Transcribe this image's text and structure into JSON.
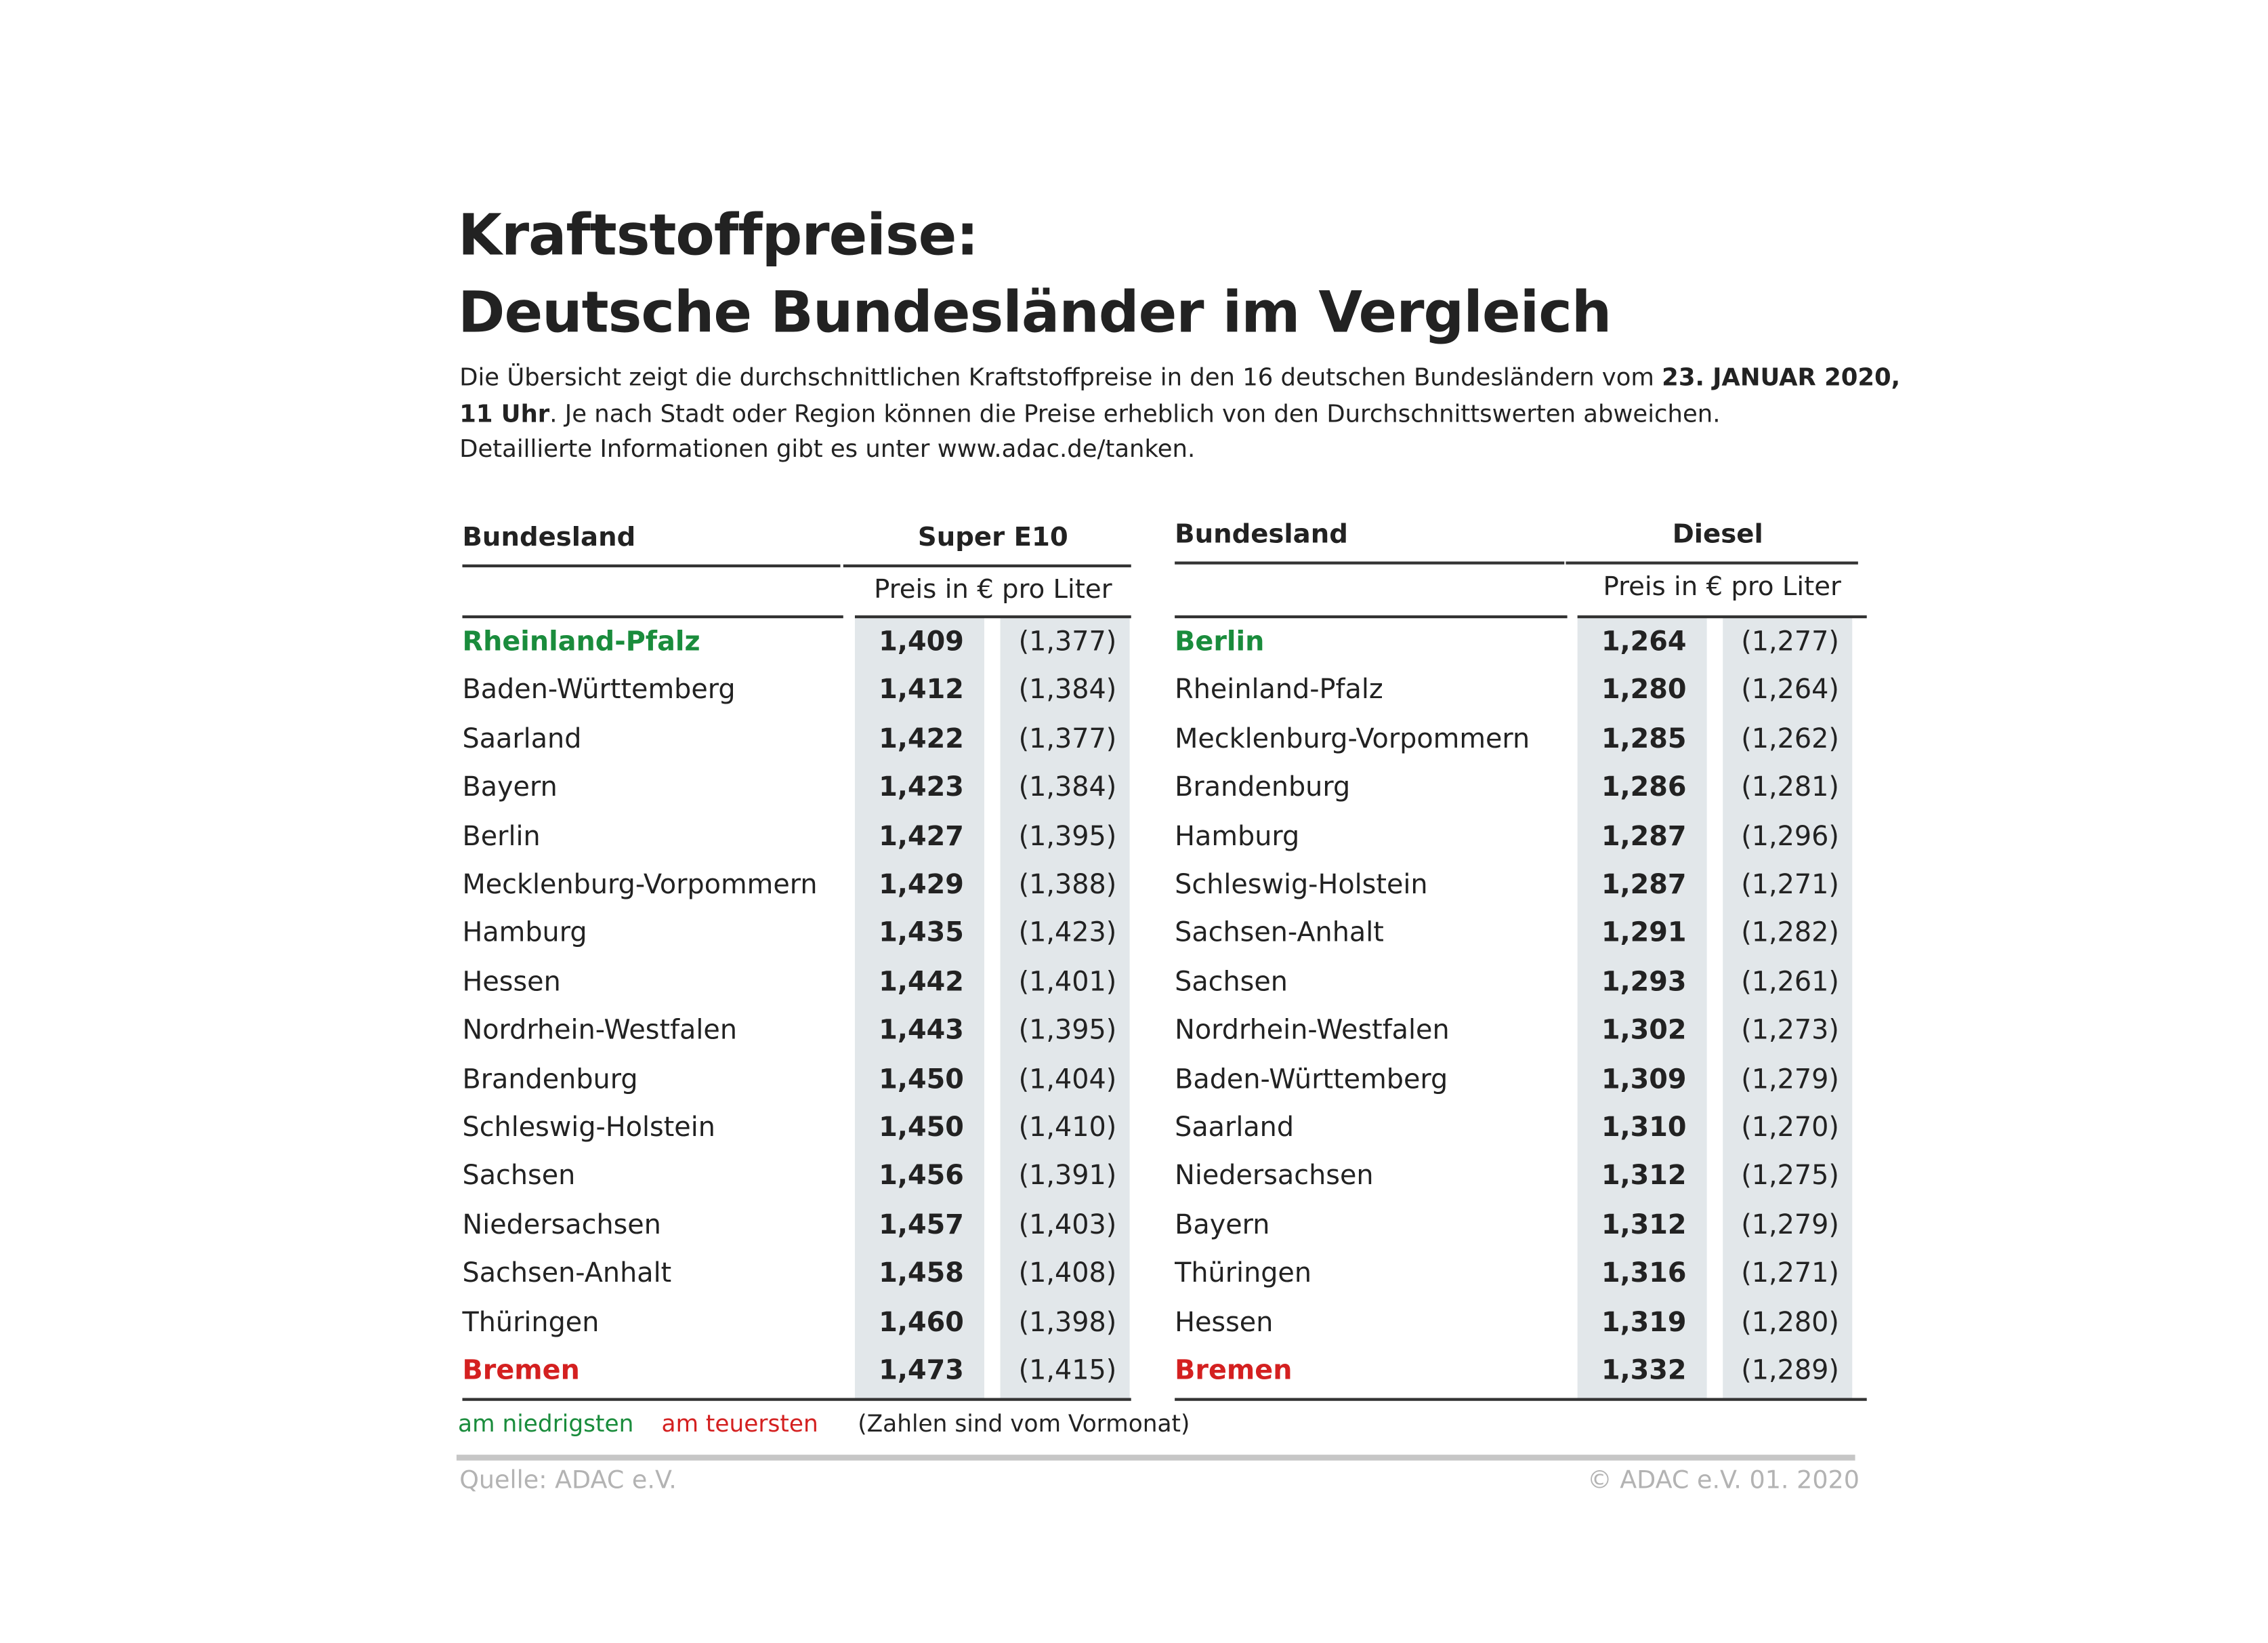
{
  "title_line1": "Kraftstoffpreise:",
  "title_line2": "Deutsche Bundesländer im Vergleich",
  "intro": {
    "part1": "Die Übersicht zeigt die durchschnittlichen Kraftstoffpreise in den 16 deutschen Bundesländern vom ",
    "date_bold": "23. JANUAR 2020,",
    "time_bold": "11 Uhr",
    "part2": ". Je nach Stadt oder Region können die Preise erheblich von den Durchschnittswerten abweichen.",
    "line3": "Detaillierte Informationen gibt es unter www.adac.de/tanken."
  },
  "colors": {
    "lowest": "#1a8c3c",
    "highest": "#d42020",
    "shade": "#e2e7ea"
  },
  "tables": [
    {
      "col_state": "Bundesland",
      "fuel": "Super E10",
      "unit": "Preis in € pro Liter",
      "rows": [
        {
          "state": "Rheinland-Pfalz",
          "price": "1,409",
          "prev": "(1,377)",
          "mark": "low"
        },
        {
          "state": "Baden-Württemberg",
          "price": "1,412",
          "prev": "(1,384)"
        },
        {
          "state": "Saarland",
          "price": "1,422",
          "prev": "(1,377)"
        },
        {
          "state": "Bayern",
          "price": "1,423",
          "prev": "(1,384)"
        },
        {
          "state": "Berlin",
          "price": "1,427",
          "prev": "(1,395)"
        },
        {
          "state": "Mecklenburg-Vorpommern",
          "price": "1,429",
          "prev": "(1,388)"
        },
        {
          "state": "Hamburg",
          "price": "1,435",
          "prev": "(1,423)"
        },
        {
          "state": "Hessen",
          "price": "1,442",
          "prev": "(1,401)"
        },
        {
          "state": "Nordrhein-Westfalen",
          "price": "1,443",
          "prev": "(1,395)"
        },
        {
          "state": "Brandenburg",
          "price": "1,450",
          "prev": "(1,404)"
        },
        {
          "state": "Schleswig-Holstein",
          "price": "1,450",
          "prev": "(1,410)"
        },
        {
          "state": "Sachsen",
          "price": "1,456",
          "prev": "(1,391)"
        },
        {
          "state": "Niedersachsen",
          "price": "1,457",
          "prev": "(1,403)"
        },
        {
          "state": "Sachsen-Anhalt",
          "price": "1,458",
          "prev": "(1,408)"
        },
        {
          "state": "Thüringen",
          "price": "1,460",
          "prev": "(1,398)"
        },
        {
          "state": "Bremen",
          "price": "1,473",
          "prev": "(1,415)",
          "mark": "high"
        }
      ]
    },
    {
      "col_state": "Bundesland",
      "fuel": "Diesel",
      "unit": "Preis in € pro Liter",
      "rows": [
        {
          "state": "Berlin",
          "price": "1,264",
          "prev": "(1,277)",
          "mark": "low"
        },
        {
          "state": "Rheinland-Pfalz",
          "price": "1,280",
          "prev": "(1,264)"
        },
        {
          "state": "Mecklenburg-Vorpommern",
          "price": "1,285",
          "prev": "(1,262)"
        },
        {
          "state": "Brandenburg",
          "price": "1,286",
          "prev": "(1,281)"
        },
        {
          "state": "Hamburg",
          "price": "1,287",
          "prev": "(1,296)"
        },
        {
          "state": "Schleswig-Holstein",
          "price": "1,287",
          "prev": "(1,271)"
        },
        {
          "state": "Sachsen-Anhalt",
          "price": "1,291",
          "prev": "(1,282)"
        },
        {
          "state": "Sachsen",
          "price": "1,293",
          "prev": "(1,261)"
        },
        {
          "state": "Nordrhein-Westfalen",
          "price": "1,302",
          "prev": "(1,273)"
        },
        {
          "state": "Baden-Württemberg",
          "price": "1,309",
          "prev": "(1,279)"
        },
        {
          "state": "Saarland",
          "price": "1,310",
          "prev": "(1,270)"
        },
        {
          "state": "Niedersachsen",
          "price": "1,312",
          "prev": "(1,275)"
        },
        {
          "state": "Bayern",
          "price": "1,312",
          "prev": "(1,279)"
        },
        {
          "state": "Thüringen",
          "price": "1,316",
          "prev": "(1,271)"
        },
        {
          "state": "Hessen",
          "price": "1,319",
          "prev": "(1,280)"
        },
        {
          "state": "Bremen",
          "price": "1,332",
          "prev": "(1,289)",
          "mark": "high"
        }
      ]
    }
  ],
  "legend": {
    "lowest": "am niedrigsten",
    "highest": "am teuersten",
    "note": "(Zahlen sind vom Vormonat)"
  },
  "footer": {
    "source": "Quelle: ADAC e.V.",
    "copyright": "© ADAC e.V. 01. 2020"
  }
}
